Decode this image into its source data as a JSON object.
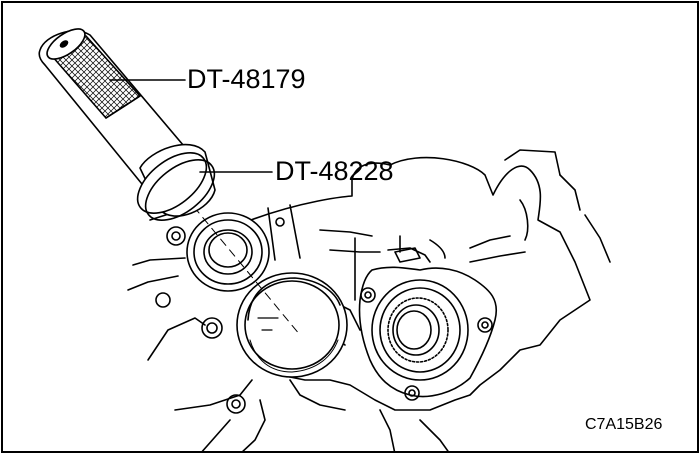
{
  "callouts": [
    {
      "label": "DT-48179"
    },
    {
      "label": "DT-48228"
    }
  ],
  "figure_code": "C7A15B26",
  "colors": {
    "line": "#000000",
    "background": "#ffffff",
    "tool_body": "#f2f2f2"
  }
}
